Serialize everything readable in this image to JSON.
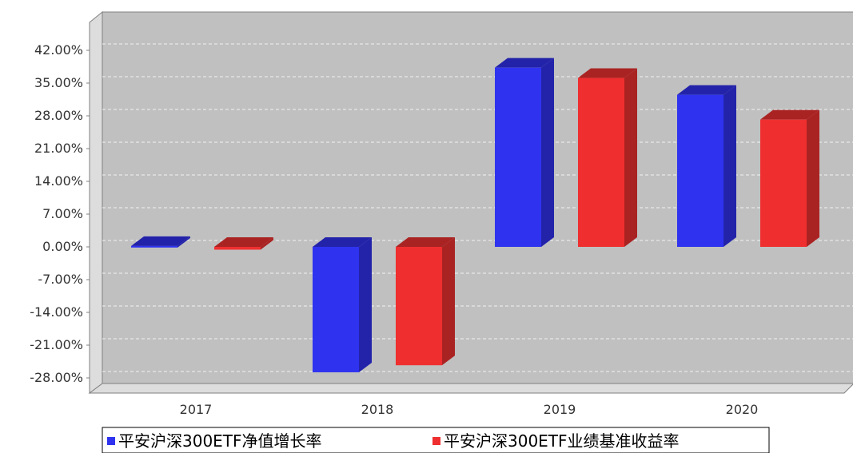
{
  "chart_data": {
    "type": "bar",
    "categories": [
      "2017",
      "2018",
      "2019",
      "2020"
    ],
    "series": [
      {
        "name": "平安沪深300ETF净值增长率",
        "color": "#2f33ef",
        "side_color": "#2323aa",
        "values": [
          0.2,
          -26.8,
          38.3,
          32.5
        ]
      },
      {
        "name": "平安沪深300ETF业绩基准收益率",
        "color": "#ef2f2f",
        "side_color": "#aa2323",
        "values": [
          -0.6,
          -25.3,
          36.1,
          27.2
        ]
      }
    ],
    "yticks": [
      "42.00%",
      "35.00%",
      "28.00%",
      "21.00%",
      "14.00%",
      "7.00%",
      "0.00%",
      "-7.00%",
      "-14.00%",
      "-21.00%",
      "-28.00%"
    ],
    "ylim": [
      -28,
      42
    ],
    "grid": true,
    "legend_position": "bottom",
    "style": "3d"
  }
}
